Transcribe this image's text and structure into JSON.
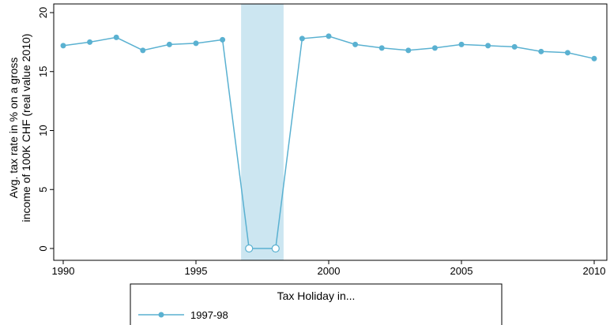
{
  "chart_data": {
    "type": "line",
    "title": "",
    "xlabel": "",
    "ylabel_lines": [
      "Avg. tax rate in % on a gross",
      "income of 100K CHF (real value 2010)"
    ],
    "xlim": [
      1990,
      2010
    ],
    "ylim": [
      0,
      20
    ],
    "x_ticks": [
      1990,
      1995,
      2000,
      2005,
      2010
    ],
    "x_tick_labels": [
      "1990",
      "1995",
      "2000",
      "2005",
      "2010"
    ],
    "y_ticks": [
      0,
      5,
      10,
      15,
      20
    ],
    "y_tick_labels": [
      "0",
      "5",
      "10",
      "15",
      "20"
    ],
    "grid": false,
    "shaded_region": {
      "x_start": 1996.7,
      "x_end": 1998.3,
      "color": "#cce6f1"
    },
    "series": [
      {
        "name": "1997-98",
        "color": "#5ab1d1",
        "x": [
          1990,
          1991,
          1992,
          1993,
          1994,
          1995,
          1996,
          1997,
          1998,
          1999,
          2000,
          2001,
          2002,
          2003,
          2004,
          2005,
          2006,
          2007,
          2008,
          2009,
          2010
        ],
        "y": [
          17.2,
          17.5,
          17.9,
          16.8,
          17.3,
          17.4,
          17.7,
          0,
          0,
          17.8,
          18.0,
          17.3,
          17.0,
          16.8,
          17.0,
          17.3,
          17.2,
          17.1,
          16.7,
          16.6,
          16.1
        ],
        "hollow_x": [
          1997,
          1998
        ]
      }
    ],
    "legend": {
      "title": "Tax Holiday in...",
      "position": "bottom",
      "entries": [
        "1997-98"
      ]
    }
  }
}
